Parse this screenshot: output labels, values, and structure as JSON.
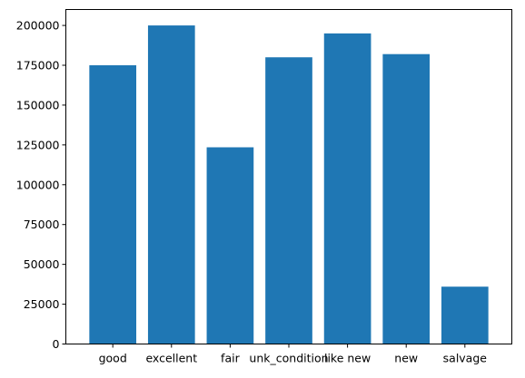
{
  "chart_data": {
    "type": "bar",
    "categories": [
      "good",
      "excellent",
      "fair",
      "unk_condition",
      "like new",
      "new",
      "salvage"
    ],
    "values": [
      175000,
      200000,
      123500,
      180000,
      195000,
      182000,
      36000
    ],
    "title": "",
    "xlabel": "",
    "ylabel": "",
    "ylim": [
      0,
      210000
    ],
    "yticks": [
      0,
      25000,
      50000,
      75000,
      100000,
      125000,
      150000,
      175000,
      200000
    ],
    "grid": false,
    "bar_color": "#1f77b4"
  }
}
